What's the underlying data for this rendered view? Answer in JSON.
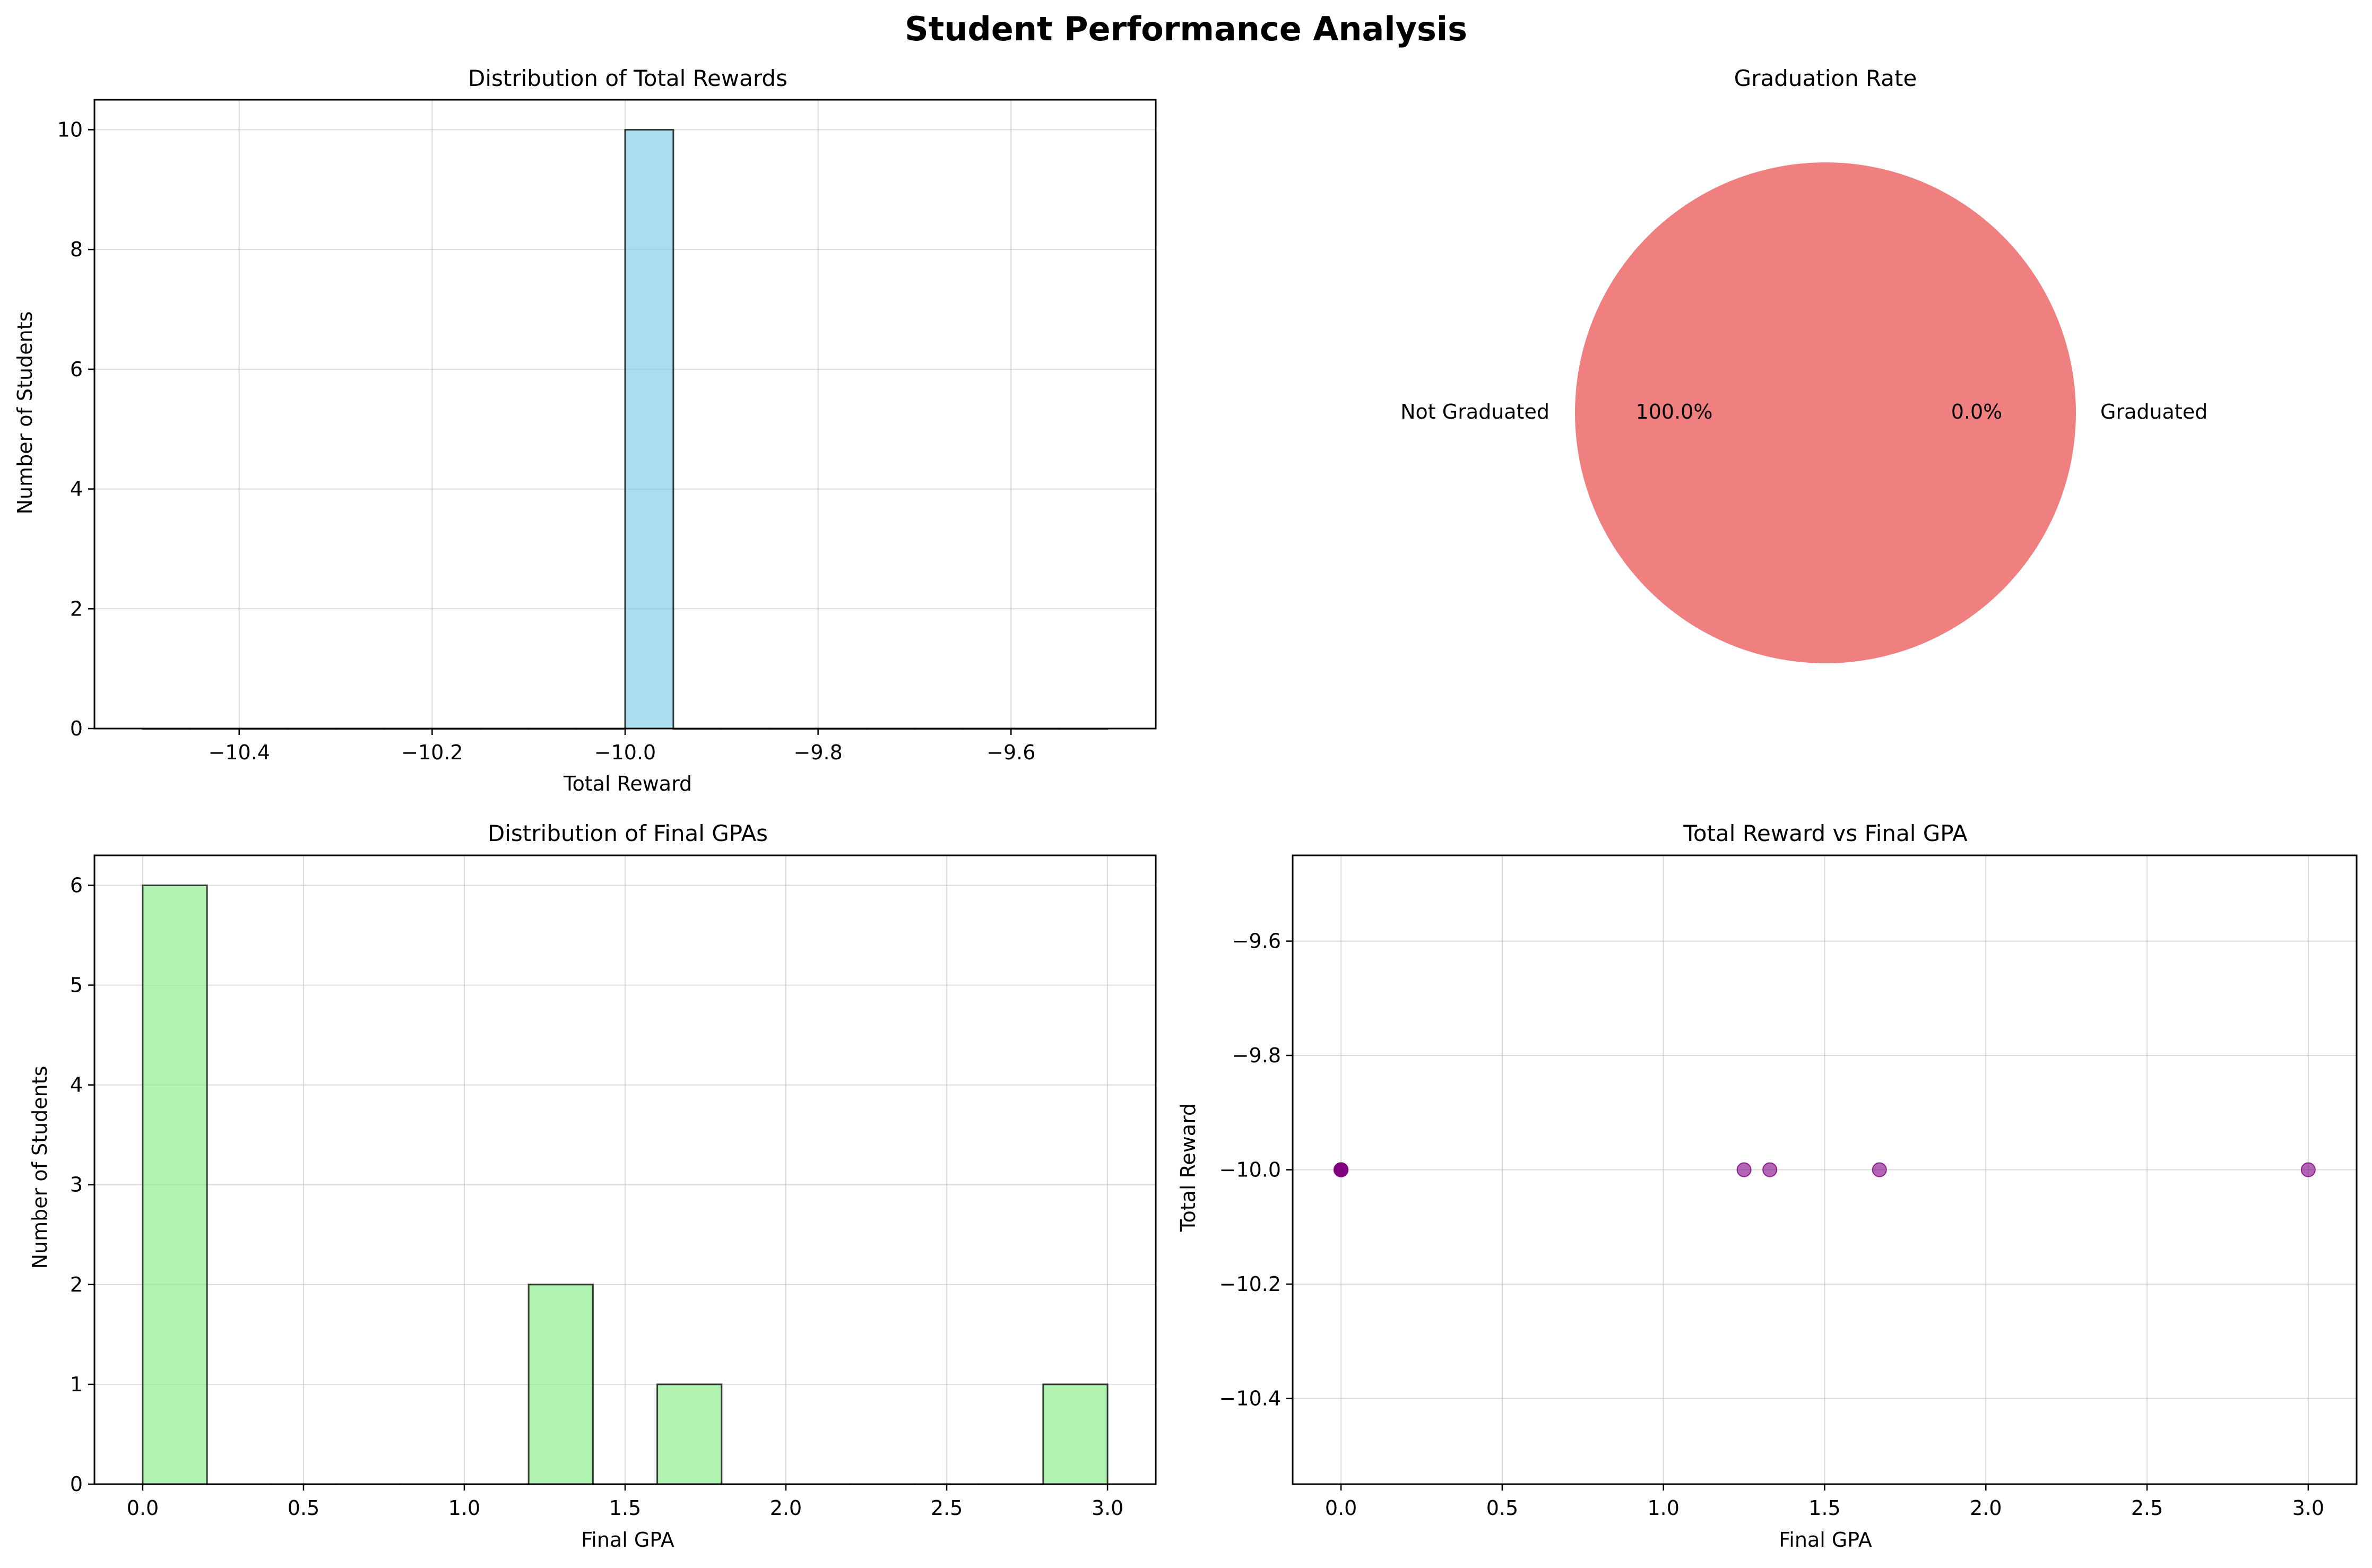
{
  "figure": {
    "suptitle": "Student Performance Analysis"
  },
  "chart_data": [
    {
      "id": "rewards_hist",
      "type": "bar",
      "title": "Distribution of Total Rewards",
      "xlabel": "Total Reward",
      "ylabel": "Number of Students",
      "xlim": [
        -10.55,
        -9.45
      ],
      "ylim": [
        0,
        10.5
      ],
      "xticks": [
        -10.4,
        -10.2,
        -10.0,
        -9.8,
        -9.6
      ],
      "xtick_labels": [
        "−10.4",
        "−10.2",
        "−10.0",
        "−9.8",
        "−9.6"
      ],
      "yticks": [
        0,
        2,
        4,
        6,
        8,
        10
      ],
      "bin_start": -10.5,
      "bin_width": 0.05,
      "values": [
        0,
        0,
        0,
        0,
        0,
        0,
        0,
        0,
        0,
        0,
        10,
        0,
        0,
        0,
        0,
        0,
        0,
        0,
        0,
        0
      ],
      "color": "#87ceeb",
      "grid": true
    },
    {
      "id": "grad_pie",
      "type": "pie",
      "title": "Graduation Rate",
      "labels": [
        "Graduated",
        "Not Graduated"
      ],
      "values": [
        0,
        100
      ],
      "pct_labels": [
        "0.0%",
        "100.0%"
      ],
      "colors": [
        "#90ee90",
        "#f08080"
      ]
    },
    {
      "id": "gpa_hist",
      "type": "bar",
      "title": "Distribution of Final GPAs",
      "xlabel": "Final GPA",
      "ylabel": "Number of Students",
      "xlim": [
        -0.15,
        3.15
      ],
      "ylim": [
        0,
        6.3
      ],
      "xticks": [
        0.0,
        0.5,
        1.0,
        1.5,
        2.0,
        2.5,
        3.0
      ],
      "xtick_labels": [
        "0.0",
        "0.5",
        "1.0",
        "1.5",
        "2.0",
        "2.5",
        "3.0"
      ],
      "yticks": [
        0,
        1,
        2,
        3,
        4,
        5,
        6
      ],
      "bin_start": 0.0,
      "bin_width": 0.2,
      "values": [
        6,
        0,
        0,
        0,
        0,
        0,
        2,
        0,
        1,
        0,
        0,
        0,
        0,
        0,
        1
      ],
      "color": "#90ee90",
      "grid": true
    },
    {
      "id": "reward_gpa_scatter",
      "type": "scatter",
      "title": "Total Reward vs Final GPA",
      "xlabel": "Final GPA",
      "ylabel": "Total Reward",
      "xlim": [
        -0.15,
        3.15
      ],
      "ylim": [
        -10.55,
        -9.45
      ],
      "xticks": [
        0.0,
        0.5,
        1.0,
        1.5,
        2.0,
        2.5,
        3.0
      ],
      "xtick_labels": [
        "0.0",
        "0.5",
        "1.0",
        "1.5",
        "2.0",
        "2.5",
        "3.0"
      ],
      "yticks": [
        -10.4,
        -10.2,
        -10.0,
        -9.8,
        -9.6
      ],
      "ytick_labels": [
        "−10.4",
        "−10.2",
        "−10.0",
        "−9.8",
        "−9.6"
      ],
      "x": [
        0.0,
        0.0,
        0.0,
        0.0,
        0.0,
        0.0,
        1.25,
        1.33,
        1.67,
        3.0
      ],
      "y": [
        -10,
        -10,
        -10,
        -10,
        -10,
        -10,
        -10,
        -10,
        -10,
        -10
      ],
      "color": "#800080",
      "grid": true
    }
  ]
}
